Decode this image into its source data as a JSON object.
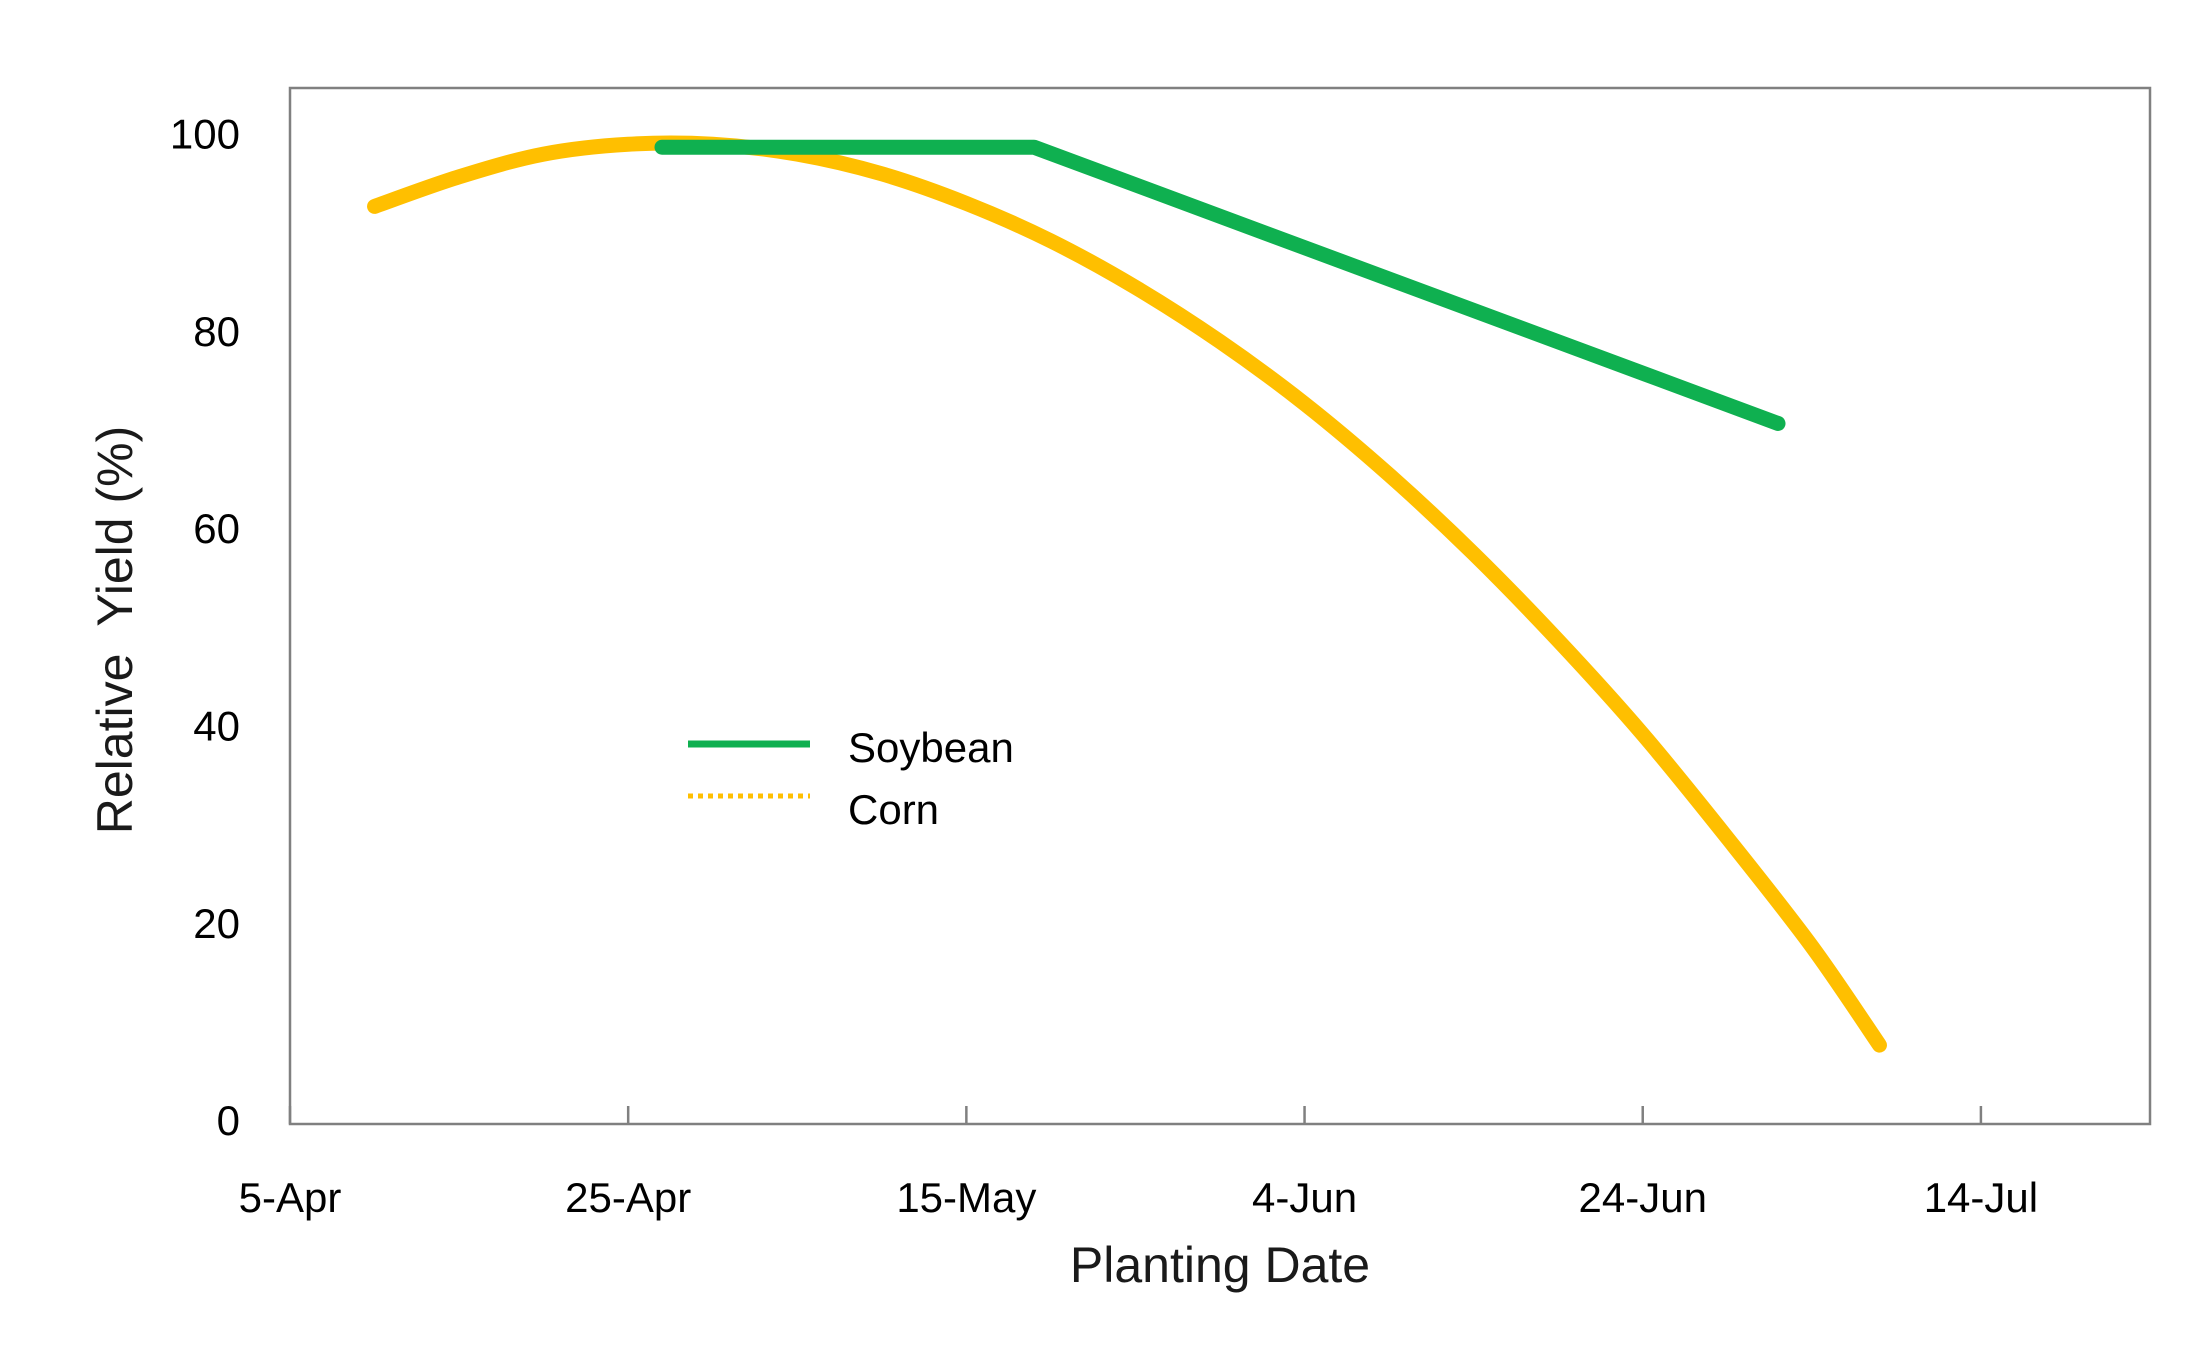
{
  "chart_data": {
    "type": "line",
    "title": "",
    "xlabel": "Planting Date",
    "ylabel": "Relative  Yield (%)",
    "x_ticks": [
      "5-Apr",
      "25-Apr",
      "15-May",
      "4-Jun",
      "24-Jun",
      "14-Jul"
    ],
    "x_tick_days": [
      0,
      20,
      40,
      60,
      80,
      100
    ],
    "y_ticks": [
      "0",
      "20",
      "40",
      "60",
      "80",
      "100"
    ],
    "xlim_days": [
      0,
      110
    ],
    "ylim": [
      0,
      105
    ],
    "grid": false,
    "legend_position": "center-left",
    "series": [
      {
        "name": "Soybean",
        "color": "#0fb050",
        "style": "solid",
        "points": [
          {
            "x": "27-Apr",
            "day": 22,
            "y": 99
          },
          {
            "x": "19-May",
            "day": 44,
            "y": 99
          },
          {
            "x": "2-Jul",
            "day": 88,
            "y": 71
          }
        ]
      },
      {
        "name": "Corn",
        "color": "#ffbf00",
        "style": "dotted",
        "points": [
          {
            "x": "10-Apr",
            "day": 5,
            "y": 93
          },
          {
            "x": "15-Apr",
            "day": 10,
            "y": 96
          },
          {
            "x": "20-Apr",
            "day": 15,
            "y": 98.3
          },
          {
            "x": "25-Apr",
            "day": 20,
            "y": 99.3
          },
          {
            "x": "30-Apr",
            "day": 25,
            "y": 99.3
          },
          {
            "x": "5-May",
            "day": 30,
            "y": 98.3
          },
          {
            "x": "10-May",
            "day": 35,
            "y": 96.3
          },
          {
            "x": "15-May",
            "day": 40,
            "y": 93.3
          },
          {
            "x": "20-May",
            "day": 45,
            "y": 89.5
          },
          {
            "x": "25-May",
            "day": 50,
            "y": 84.8
          },
          {
            "x": "30-May",
            "day": 55,
            "y": 79.3
          },
          {
            "x": "4-Jun",
            "day": 60,
            "y": 73
          },
          {
            "x": "9-Jun",
            "day": 65,
            "y": 65.8
          },
          {
            "x": "14-Jun",
            "day": 70,
            "y": 57.8
          },
          {
            "x": "19-Jun",
            "day": 75,
            "y": 49
          },
          {
            "x": "24-Jun",
            "day": 80,
            "y": 39.5
          },
          {
            "x": "29-Jun",
            "day": 85,
            "y": 29
          },
          {
            "x": "4-Jul",
            "day": 90,
            "y": 18
          },
          {
            "x": "8-Jul",
            "day": 94,
            "y": 8
          }
        ]
      }
    ]
  }
}
